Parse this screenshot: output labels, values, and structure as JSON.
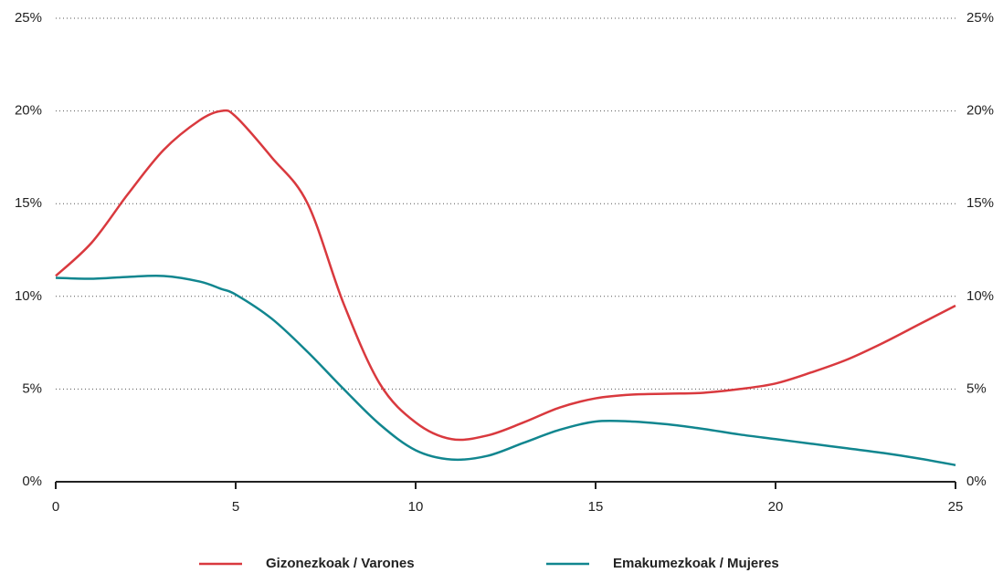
{
  "chart_data": {
    "type": "line",
    "x": [
      0,
      1,
      2,
      3,
      4,
      4.6,
      5,
      6,
      7,
      8,
      9,
      10,
      11,
      12,
      13,
      14,
      15,
      16,
      17,
      18,
      19,
      20,
      21,
      22,
      23,
      24,
      25
    ],
    "series": [
      {
        "name": "Gizonezkoak / Varones",
        "color": "#d9393e",
        "values": [
          11.1,
          12.9,
          15.5,
          17.9,
          19.5,
          20.0,
          19.7,
          17.5,
          15.0,
          9.6,
          5.3,
          3.2,
          2.3,
          2.5,
          3.2,
          4.0,
          4.5,
          4.7,
          4.75,
          4.8,
          5.0,
          5.3,
          5.9,
          6.6,
          7.5,
          8.5,
          9.5
        ]
      },
      {
        "name": "Emakumezkoak / Mujeres",
        "color": "#11868f",
        "values": [
          11.0,
          10.95,
          11.05,
          11.1,
          10.8,
          10.4,
          10.1,
          8.8,
          7.0,
          5.0,
          3.1,
          1.7,
          1.2,
          1.4,
          2.1,
          2.8,
          3.25,
          3.25,
          3.1,
          2.85,
          2.55,
          2.3,
          2.05,
          1.8,
          1.55,
          1.25,
          0.9
        ]
      }
    ],
    "xlim": [
      0,
      25
    ],
    "xticks": [
      0,
      5,
      10,
      15,
      20,
      25
    ],
    "ylim": [
      0,
      25
    ],
    "yticks": [
      {
        "value": 0,
        "label": "0%"
      },
      {
        "value": 5,
        "label": "5%"
      },
      {
        "value": 10,
        "label": "10%"
      },
      {
        "value": 15,
        "label": "15%"
      },
      {
        "value": 20,
        "label": "20%"
      },
      {
        "value": 25,
        "label": "25%"
      }
    ],
    "y2lim": [
      0,
      25
    ],
    "y2ticks": [
      {
        "value": 0,
        "label": "0%"
      },
      {
        "value": 5,
        "label": "5%"
      },
      {
        "value": 10,
        "label": "10%"
      },
      {
        "value": 15,
        "label": "15%"
      },
      {
        "value": 20,
        "label": "20%"
      },
      {
        "value": 25,
        "label": "25%"
      }
    ],
    "grid": true
  }
}
